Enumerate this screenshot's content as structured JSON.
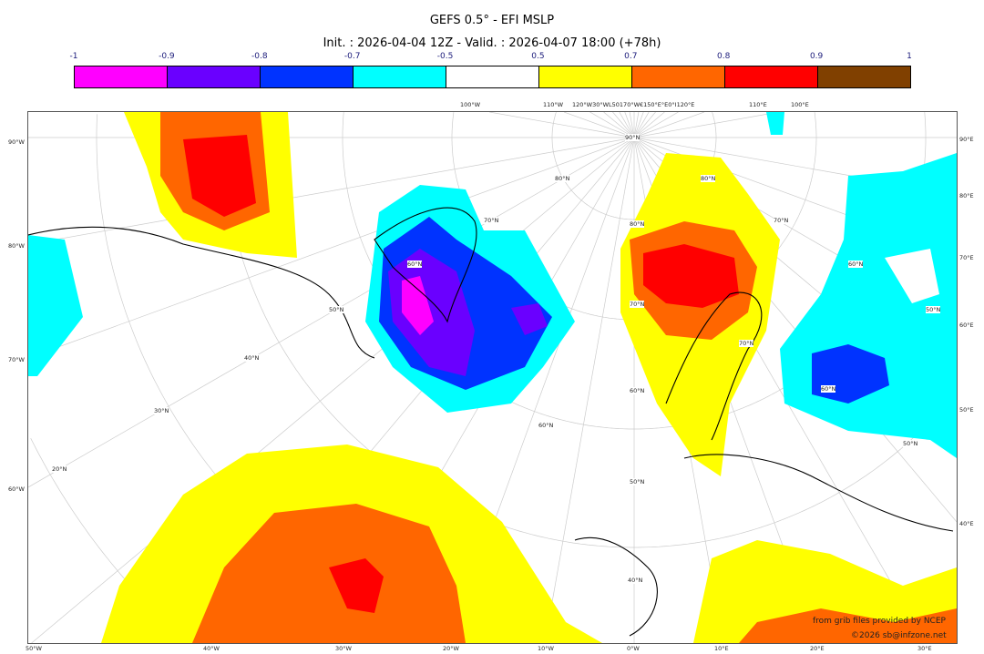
{
  "header": {
    "title": "GEFS 0.5° - EFI MSLP",
    "subtitle": "Init. : 2026-04-04 12Z - Valid. : 2026-04-07 18:00 (+78h)"
  },
  "colorbar": {
    "ticks": [
      "-1",
      "-0.9",
      "-0.8",
      "-0.7",
      "-0.5",
      "0.5",
      "0.7",
      "0.8",
      "0.9",
      "1"
    ],
    "colors": [
      "#ff00ff",
      "#6a00ff",
      "#0033ff",
      "#00ffff",
      "#ffffff",
      "#ffff00",
      "#ff6600",
      "#ff0000",
      "#804000"
    ]
  },
  "axes": {
    "left": [
      "90°W",
      "80°W",
      "70°W",
      "60°W"
    ],
    "bottom": [
      "50°W",
      "40°W",
      "30°W",
      "20°W",
      "10°W",
      "0°W",
      "10°E",
      "20°E",
      "30°E"
    ],
    "right": [
      "90°E",
      "80°E",
      "70°E",
      "60°E",
      "50°E",
      "40°E"
    ],
    "top": [
      "100°W",
      "110°W",
      "120°W30°WL50170°W€150°E°E0°I120°E",
      "110°E",
      "100°E"
    ]
  },
  "map_labels": [
    "90°N",
    "80°N",
    "70°N",
    "60°N",
    "50°N",
    "40°N",
    "30°N",
    "20°N",
    "80°N",
    "70°N",
    "60°N",
    "50°N",
    "40°N",
    "60°N",
    "70°N",
    "50°N",
    "60°N",
    "70°N",
    "80°N",
    "60°N",
    "50°N"
  ],
  "credits": {
    "line1": "from grib files provided by NCEP",
    "line2": "©2026 sb@infzone.net"
  }
}
